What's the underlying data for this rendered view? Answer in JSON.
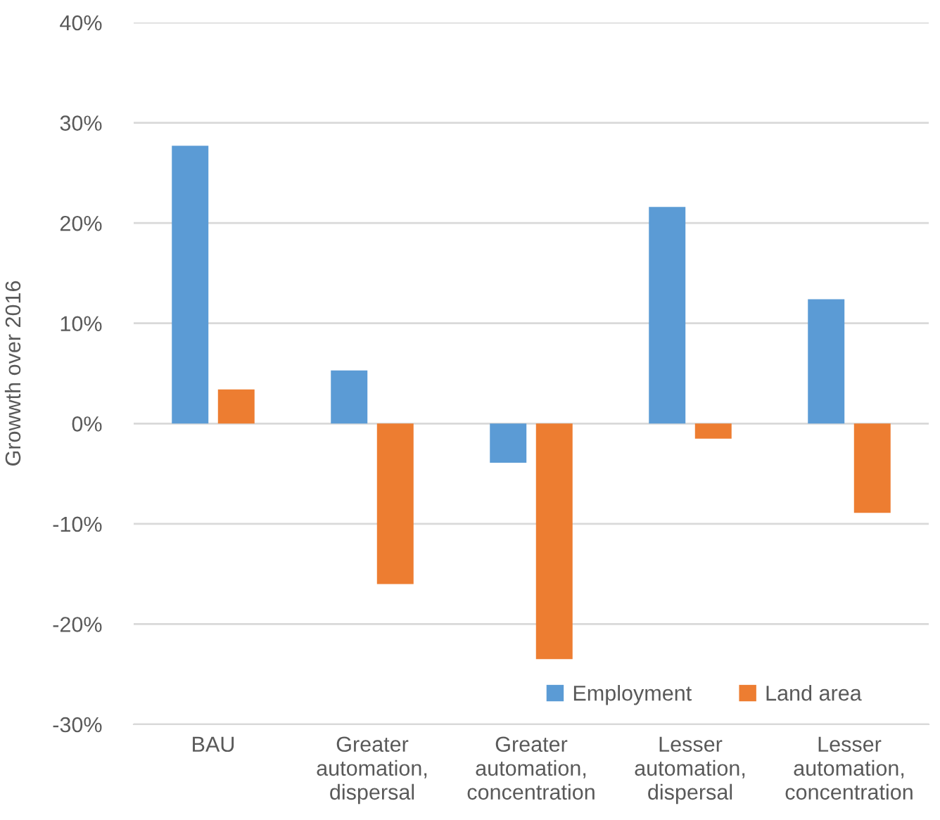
{
  "chart_data": {
    "type": "bar",
    "ylabel": "Growwth over 2016",
    "categories": [
      "BAU",
      "Greater\nautomation,\ndispersal",
      "Greater\nautomation,\nconcentration",
      "Lesser\nautomation,\ndispersal",
      "Lesser\nautomation,\nconcentration"
    ],
    "series": [
      {
        "name": "Employment",
        "color": "#5b9bd5",
        "values": [
          27.7,
          5.3,
          -3.9,
          21.6,
          12.4
        ]
      },
      {
        "name": "Land area",
        "color": "#ed7d31",
        "values": [
          3.4,
          -16.0,
          -23.5,
          -1.5,
          -8.9
        ]
      }
    ],
    "ylim": [
      -30,
      40
    ],
    "yticks": [
      {
        "value": -30,
        "label": "-30%"
      },
      {
        "value": -20,
        "label": "-20%"
      },
      {
        "value": -10,
        "label": "-10%"
      },
      {
        "value": 0,
        "label": "0%"
      },
      {
        "value": 10,
        "label": "10%"
      },
      {
        "value": 20,
        "label": "20%"
      },
      {
        "value": 30,
        "label": "30%"
      },
      {
        "value": 40,
        "label": "40%"
      }
    ],
    "grid": "y",
    "legend": "bottom right"
  }
}
